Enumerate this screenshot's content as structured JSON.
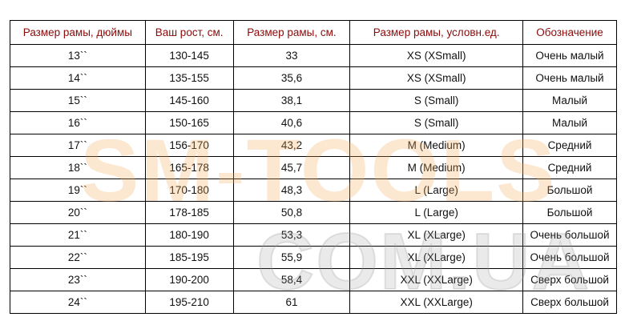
{
  "watermark": {
    "line1": "SM-TOOLS",
    "line2": "COM.UA"
  },
  "colors": {
    "header_text": "#8b0a0a"
  },
  "table": {
    "headers": [
      "Размер рамы, дюймы",
      "Ваш рост, см.",
      "Размер рамы, см.",
      "Размер рамы, условн.ед.",
      "Обозначение"
    ],
    "rows": [
      [
        "13``",
        "130-145",
        "33",
        "XS (XSmall)",
        "Очень малый"
      ],
      [
        "14``",
        "135-155",
        "35,6",
        "XS (XSmall)",
        "Очень малый"
      ],
      [
        "15``",
        "145-160",
        "38,1",
        "S (Small)",
        "Малый"
      ],
      [
        "16``",
        "150-165",
        "40,6",
        "S (Small)",
        "Малый"
      ],
      [
        "17``",
        "156-170",
        "43,2",
        "M (Medium)",
        "Средний"
      ],
      [
        "18``",
        "165-178",
        "45,7",
        "M (Medium)",
        "Средний"
      ],
      [
        "19``",
        "170-180",
        "48,3",
        "L (Large)",
        "Большой"
      ],
      [
        "20``",
        "178-185",
        "50,8",
        "L (Large)",
        "Большой"
      ],
      [
        "21``",
        "180-190",
        "53,3",
        "XL (XLarge)",
        "Очень большой"
      ],
      [
        "22``",
        "185-195",
        "55,9",
        "XL (XLarge)",
        "Очень большой"
      ],
      [
        "23``",
        "190-200",
        "58,4",
        "XXL (XXLarge)",
        "Сверх большой"
      ],
      [
        "24``",
        "195-210",
        "61",
        "XXL (XXLarge)",
        "Сверх большой"
      ]
    ]
  }
}
